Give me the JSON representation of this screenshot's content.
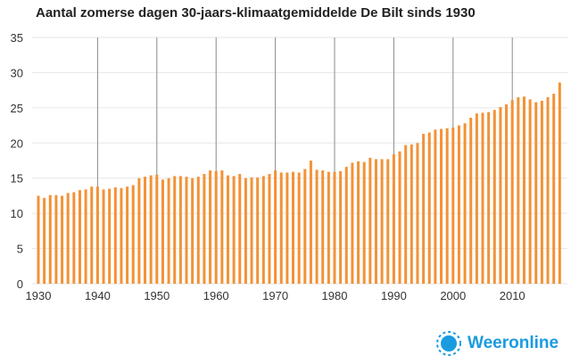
{
  "chart_data": {
    "type": "bar",
    "title": "Aantal zomerse dagen 30-jaars-klimaatgemiddelde De Bilt sinds 1930",
    "xlabel": "",
    "ylabel": "",
    "ylim": [
      0,
      35
    ],
    "yticks": [
      0,
      5,
      10,
      15,
      20,
      25,
      30,
      35
    ],
    "xticks": [
      1930,
      1940,
      1950,
      1960,
      1970,
      1980,
      1990,
      2000,
      2010
    ],
    "x_start": 1930,
    "grid": true,
    "bar_color": "#f39237",
    "values": [
      12.5,
      12.2,
      12.6,
      12.6,
      12.5,
      12.9,
      13.0,
      13.3,
      13.4,
      13.8,
      13.8,
      13.4,
      13.5,
      13.7,
      13.6,
      13.8,
      14.0,
      15.0,
      15.2,
      15.4,
      15.5,
      14.8,
      15.0,
      15.3,
      15.3,
      15.2,
      15.0,
      15.2,
      15.6,
      16.1,
      16.0,
      16.1,
      15.4,
      15.3,
      15.6,
      15.0,
      15.1,
      15.1,
      15.3,
      15.6,
      16.1,
      15.8,
      15.8,
      15.9,
      15.8,
      16.3,
      17.5,
      16.2,
      16.1,
      15.9,
      15.9,
      16.0,
      16.6,
      17.2,
      17.4,
      17.3,
      17.9,
      17.7,
      17.7,
      17.7,
      18.4,
      18.8,
      19.7,
      19.8,
      20.0,
      21.3,
      21.5,
      21.9,
      22.0,
      22.1,
      22.2,
      22.5,
      22.8,
      23.6,
      24.2,
      24.3,
      24.4,
      24.7,
      25.1,
      25.5,
      26.1,
      26.5,
      26.6,
      26.2,
      25.8,
      26.0,
      26.5,
      27.0,
      28.6
    ]
  },
  "logo": {
    "text": "Weeronline",
    "color": "#1a9be0"
  }
}
